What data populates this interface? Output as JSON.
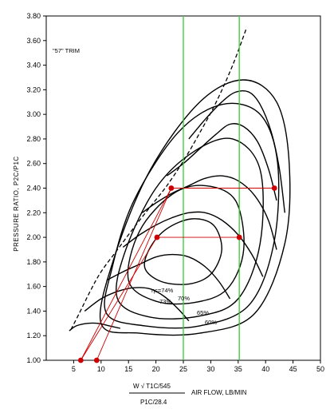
{
  "chart_data": {
    "type": "line",
    "trim_label": "\"57\" TRIM",
    "ylabel": "PRESSURE RATIO, P2C/P1C",
    "xlabel_formula": {
      "numerator": "W √ T1C/545",
      "denominator": "P1C/28.4"
    },
    "xlabel": "AIR FLOW, LB/MIN",
    "xlim": [
      0,
      50
    ],
    "ylim": [
      1.0,
      3.8
    ],
    "x_ticks": [
      5,
      10,
      15,
      20,
      25,
      30,
      35,
      40,
      45,
      50
    ],
    "y_ticks": [
      "1.00",
      "1.20",
      "1.40",
      "1.60",
      "1.80",
      "2.00",
      "2.20",
      "2.40",
      "2.60",
      "2.80",
      "3.00",
      "3.20",
      "3.40",
      "3.60",
      "3.80"
    ],
    "efficiency_labels": [
      "ηc=74%",
      "73%",
      "70%",
      "65%",
      "60%"
    ],
    "colors": {
      "ink": "#000000",
      "markers": "#cc0000",
      "guide_lines": "#33cc33",
      "construction": "#cc0000"
    },
    "guide_lines_x": [
      25,
      35.2
    ],
    "surge_line": [
      [
        4.5,
        1.25
      ],
      [
        6,
        1.38
      ],
      [
        8,
        1.56
      ],
      [
        10,
        1.72
      ],
      [
        13,
        1.9
      ],
      [
        16,
        2.08
      ],
      [
        19,
        2.25
      ],
      [
        22,
        2.42
      ],
      [
        25,
        2.62
      ],
      [
        28,
        2.85
      ],
      [
        31,
        3.1
      ],
      [
        34,
        3.4
      ],
      [
        36.5,
        3.7
      ]
    ],
    "speed_lines": [
      [
        [
          4.2,
          1.24
        ],
        [
          5.5,
          1.28
        ],
        [
          7.5,
          1.3
        ],
        [
          9.5,
          1.3
        ],
        [
          11.5,
          1.28
        ],
        [
          13.5,
          1.26
        ]
      ],
      [
        [
          7,
          1.4
        ],
        [
          10,
          1.5
        ],
        [
          13,
          1.56
        ],
        [
          16,
          1.59
        ],
        [
          19,
          1.58
        ],
        [
          21.5,
          1.52
        ],
        [
          24,
          1.42
        ],
        [
          26,
          1.32
        ]
      ],
      [
        [
          11,
          1.65
        ],
        [
          14,
          1.72
        ],
        [
          17,
          1.78
        ],
        [
          20,
          1.84
        ],
        [
          23,
          1.86
        ],
        [
          26,
          1.84
        ],
        [
          29,
          1.76
        ],
        [
          31.5,
          1.64
        ],
        [
          33.5,
          1.5
        ]
      ],
      [
        [
          14,
          1.92
        ],
        [
          17,
          2.02
        ],
        [
          20,
          2.1
        ],
        [
          23,
          2.16
        ],
        [
          26,
          2.2
        ],
        [
          29,
          2.2
        ],
        [
          32,
          2.14
        ],
        [
          35,
          2.02
        ],
        [
          37.5,
          1.86
        ],
        [
          39.5,
          1.68
        ]
      ],
      [
        [
          17.5,
          2.2
        ],
        [
          20,
          2.28
        ],
        [
          23,
          2.36
        ],
        [
          26,
          2.42
        ],
        [
          29,
          2.48
        ],
        [
          32,
          2.5
        ],
        [
          35,
          2.46
        ],
        [
          38,
          2.34
        ],
        [
          40.5,
          2.14
        ],
        [
          42,
          1.9
        ]
      ],
      [
        [
          22,
          2.5
        ],
        [
          25,
          2.6
        ],
        [
          28,
          2.72
        ],
        [
          31,
          2.84
        ],
        [
          33.5,
          2.92
        ],
        [
          36,
          2.9
        ],
        [
          38.5,
          2.78
        ],
        [
          40.5,
          2.56
        ],
        [
          42,
          2.3
        ]
      ],
      [
        [
          26,
          2.8
        ],
        [
          29,
          2.96
        ],
        [
          32,
          3.1
        ],
        [
          34.5,
          3.18
        ],
        [
          37,
          3.18
        ],
        [
          39,
          3.08
        ],
        [
          41,
          2.86
        ],
        [
          42.5,
          2.56
        ],
        [
          43.5,
          2.2
        ]
      ]
    ],
    "efficiency_islands": [
      {
        "label": "74%",
        "pts": [
          [
            18,
            1.75
          ],
          [
            21,
            1.64
          ],
          [
            26,
            1.62
          ],
          [
            30,
            1.7
          ],
          [
            32,
            1.9
          ],
          [
            30.5,
            2.1
          ],
          [
            26.5,
            2.15
          ],
          [
            22,
            2.07
          ],
          [
            19,
            1.92
          ]
        ]
      },
      {
        "label": "73%",
        "pts": [
          [
            15,
            1.65
          ],
          [
            20,
            1.48
          ],
          [
            27,
            1.47
          ],
          [
            33,
            1.58
          ],
          [
            36,
            1.9
          ],
          [
            34.5,
            2.3
          ],
          [
            29,
            2.42
          ],
          [
            23,
            2.35
          ],
          [
            17,
            2.05
          ]
        ]
      },
      {
        "label": "70%",
        "pts": [
          [
            13,
            1.5
          ],
          [
            19,
            1.35
          ],
          [
            28,
            1.36
          ],
          [
            35,
            1.5
          ],
          [
            39,
            1.95
          ],
          [
            39,
            2.55
          ],
          [
            34,
            2.8
          ],
          [
            27,
            2.7
          ],
          [
            20,
            2.4
          ],
          [
            14.5,
            1.9
          ]
        ]
      },
      {
        "label": "65%",
        "pts": [
          [
            11,
            1.38
          ],
          [
            18,
            1.28
          ],
          [
            28,
            1.28
          ],
          [
            37,
            1.45
          ],
          [
            41.5,
            1.95
          ],
          [
            42.2,
            2.6
          ],
          [
            39,
            3.0
          ],
          [
            32,
            3.08
          ],
          [
            24,
            2.85
          ],
          [
            16,
            2.3
          ],
          [
            12,
            1.75
          ]
        ]
      },
      {
        "label": "60%",
        "pts": [
          [
            10,
            1.3
          ],
          [
            17,
            1.22
          ],
          [
            28,
            1.22
          ],
          [
            38,
            1.38
          ],
          [
            43.5,
            1.95
          ],
          [
            44.3,
            2.6
          ],
          [
            42,
            3.1
          ],
          [
            36,
            3.28
          ],
          [
            28,
            3.1
          ],
          [
            19,
            2.55
          ],
          [
            12.5,
            1.85
          ]
        ]
      }
    ],
    "construction_lines": [
      [
        [
          6.3,
          1.0
        ],
        [
          20.2,
          2.0
        ]
      ],
      [
        [
          9.2,
          1.0
        ],
        [
          22.8,
          2.4
        ]
      ],
      [
        [
          6.3,
          1.0
        ],
        [
          22.8,
          2.4
        ]
      ]
    ],
    "operating_points": [
      [
        6.3,
        1.0
      ],
      [
        9.2,
        1.0
      ],
      [
        20.2,
        2.0
      ],
      [
        22.8,
        2.4
      ],
      [
        35.2,
        2.0
      ],
      [
        41.6,
        2.4
      ]
    ],
    "horizontal_links": [
      [
        [
          20.2,
          2.0
        ],
        [
          35.2,
          2.0
        ]
      ],
      [
        [
          22.8,
          2.4
        ],
        [
          41.6,
          2.4
        ]
      ]
    ]
  }
}
